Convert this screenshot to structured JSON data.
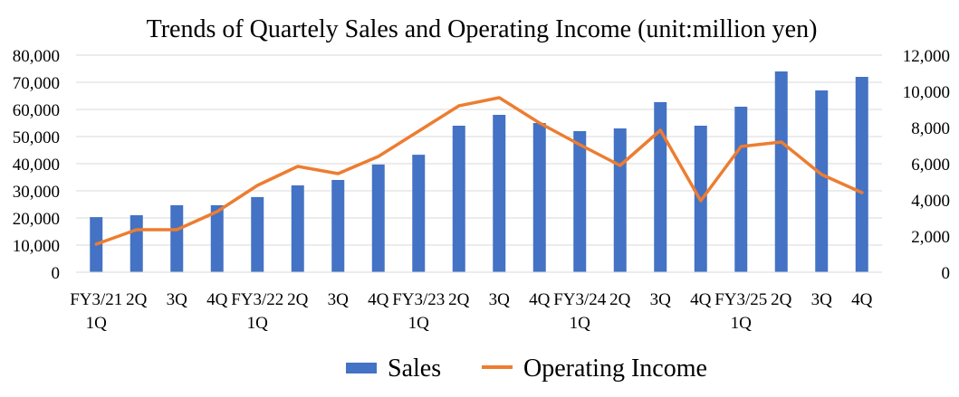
{
  "chart_data": {
    "type": "bar",
    "title": "Trends of Quartely Sales and Operating Income (unit:million yen)",
    "categories": [
      [
        "FY3/21",
        "1Q"
      ],
      [
        "2Q"
      ],
      [
        "3Q"
      ],
      [
        "4Q"
      ],
      [
        "FY3/22",
        "1Q"
      ],
      [
        "2Q"
      ],
      [
        "3Q"
      ],
      [
        "4Q"
      ],
      [
        "FY3/23",
        "1Q"
      ],
      [
        "2Q"
      ],
      [
        "3Q"
      ],
      [
        "4Q"
      ],
      [
        "FY3/24",
        "1Q"
      ],
      [
        "2Q"
      ],
      [
        "3Q"
      ],
      [
        "4Q"
      ],
      [
        "FY3/25",
        "1Q"
      ],
      [
        "2Q"
      ],
      [
        "3Q"
      ],
      [
        "4Q"
      ]
    ],
    "y_left": {
      "min": 0,
      "max": 80000,
      "step": 10000,
      "tick_labels": [
        "0",
        "10,000",
        "20,000",
        "30,000",
        "40,000",
        "50,000",
        "60,000",
        "70,000",
        "80,000"
      ]
    },
    "y_right": {
      "min": 0,
      "max": 12000,
      "step": 2000,
      "tick_labels": [
        "0",
        "2,000",
        "4,000",
        "6,000",
        "8,000",
        "10,000",
        "12,000"
      ]
    },
    "grid": true,
    "legend_position": "bottom",
    "series": [
      {
        "name": "Sales",
        "kind": "bar",
        "axis": "left",
        "color": "#4472c4",
        "values": [
          20300,
          21000,
          24700,
          24700,
          27700,
          32000,
          34000,
          39700,
          43300,
          54000,
          58000,
          55000,
          52000,
          53000,
          62700,
          54000,
          61000,
          74000,
          67000,
          72000
        ]
      },
      {
        "name": "Operating Income",
        "kind": "line",
        "axis": "right",
        "color": "#ed7d31",
        "values": [
          1550,
          2350,
          2350,
          3350,
          4800,
          5850,
          5450,
          6400,
          7800,
          9200,
          9650,
          8250,
          7050,
          5900,
          7850,
          3950,
          6950,
          7200,
          5400,
          4400
        ]
      }
    ]
  }
}
